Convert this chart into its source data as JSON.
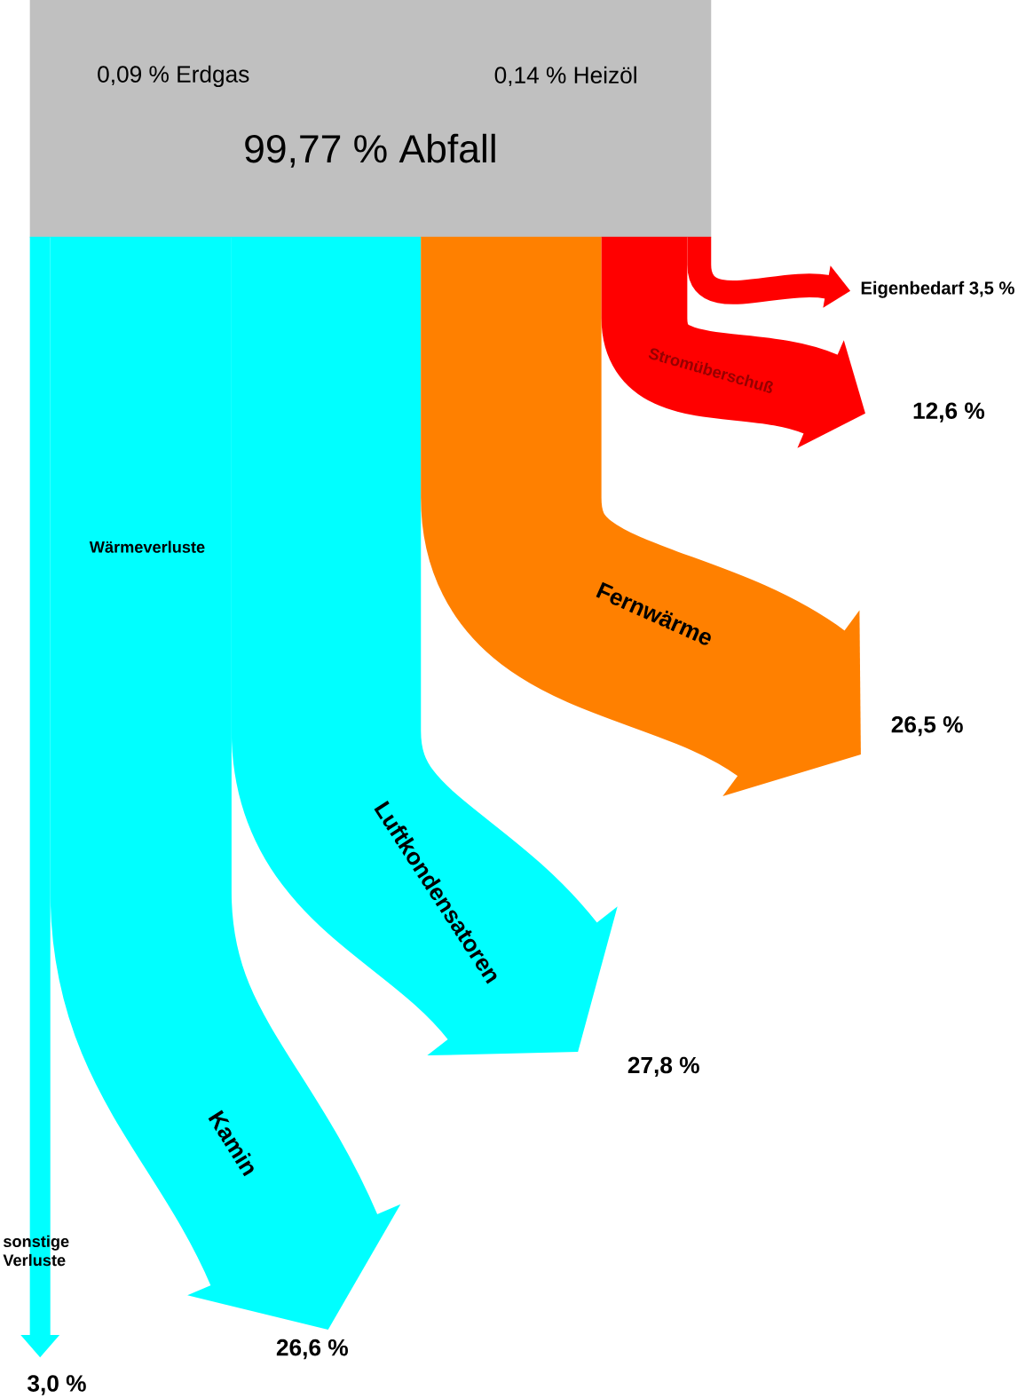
{
  "chart_data": {
    "type": "other",
    "categories": [
      "sonstige Verluste",
      "Kamin",
      "Luftkondensatoren",
      "Fernwärme",
      "Stromüberschuß",
      "Eigenbedarf"
    ],
    "values": [
      3.0,
      26.6,
      27.8,
      26.5,
      12.6,
      3.5
    ],
    "value_labels": [
      "3,0 %",
      "26,6 %",
      "27,8 %",
      "26,5 %",
      "12,6 %",
      "3,5 %"
    ],
    "colors": [
      "#00ffff",
      "#00ffff",
      "#00ffff",
      "#ff8000",
      "#ff0000",
      "#ff0000"
    ],
    "annotations": [
      "0,09 %  Erdgas",
      "0,14 %  Heizöl",
      "99,77 %  Abfall",
      "Wärmeverluste"
    ]
  }
}
